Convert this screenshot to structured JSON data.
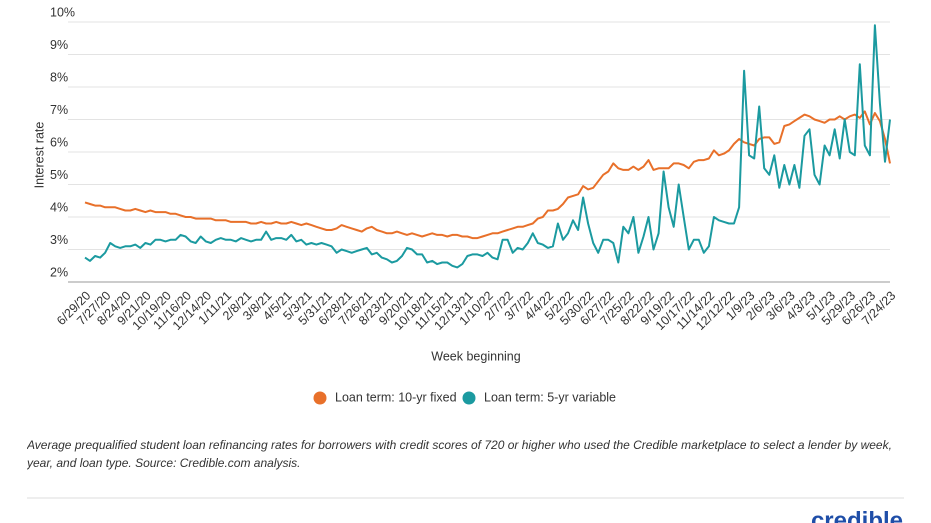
{
  "chart_data": {
    "type": "line",
    "y_label": "Interest rate",
    "x_label": "Week beginning",
    "caption": "Average prequalified student loan refinancing rates for borrowers with credit scores of 720 or higher who used the Credible marketplace to select a lender by week, year, and loan type. Source: Credible.com analysis.",
    "brand": "credible",
    "ylim": [
      2,
      10
    ],
    "yticks": [
      {
        "value": 2,
        "label": "2%"
      },
      {
        "value": 3,
        "label": "3%"
      },
      {
        "value": 4,
        "label": "4%"
      },
      {
        "value": 5,
        "label": "5%"
      },
      {
        "value": 6,
        "label": "6%"
      },
      {
        "value": 7,
        "label": "7%"
      },
      {
        "value": 8,
        "label": "8%"
      },
      {
        "value": 9,
        "label": "9%"
      },
      {
        "value": 10,
        "label": "10%"
      }
    ],
    "grid": true,
    "categories": [
      "6/29/20",
      null,
      null,
      null,
      "7/27/20",
      null,
      null,
      null,
      "8/24/20",
      null,
      null,
      null,
      "9/21/20",
      null,
      null,
      null,
      "10/19/20",
      null,
      null,
      null,
      "11/16/20",
      null,
      null,
      null,
      "12/14/20",
      null,
      null,
      null,
      "1/11/21",
      null,
      null,
      null,
      "2/8/21",
      null,
      null,
      null,
      "3/8/21",
      null,
      null,
      null,
      "4/5/21",
      null,
      null,
      null,
      "5/3/21",
      null,
      null,
      null,
      "5/31/21",
      null,
      null,
      null,
      "6/28/21",
      null,
      null,
      null,
      "7/26/21",
      null,
      null,
      null,
      "8/23/21",
      null,
      null,
      null,
      "9/20/21",
      null,
      null,
      null,
      "10/18/21",
      null,
      null,
      null,
      "11/15/21",
      null,
      null,
      null,
      "12/13/21",
      null,
      null,
      null,
      "1/10/22",
      null,
      null,
      null,
      "2/7/22",
      null,
      null,
      null,
      "3/7/22",
      null,
      null,
      null,
      "4/4/22",
      null,
      null,
      null,
      "5/2/22",
      null,
      null,
      null,
      "5/30/22",
      null,
      null,
      null,
      "6/27/22",
      null,
      null,
      null,
      "7/25/22",
      null,
      null,
      null,
      "8/22/22",
      null,
      null,
      null,
      "9/19/22",
      null,
      null,
      null,
      "10/17/22",
      null,
      null,
      null,
      "11/14/22",
      null,
      null,
      null,
      "12/12/22",
      null,
      null,
      null,
      "1/9/23",
      null,
      null,
      null,
      "2/6/23",
      null,
      null,
      null,
      "3/6/23",
      null,
      null,
      null,
      "4/3/23",
      null,
      null,
      null,
      "5/1/23",
      null,
      null,
      null,
      "5/29/23",
      null,
      null,
      null,
      "6/26/23",
      null,
      null,
      null,
      "7/24/23"
    ],
    "series": [
      {
        "name": "Loan term: 10-yr fixed",
        "color": "#e8702a",
        "values": [
          4.45,
          4.4,
          4.35,
          4.35,
          4.3,
          4.3,
          4.3,
          4.25,
          4.2,
          4.2,
          4.25,
          4.2,
          4.15,
          4.2,
          4.15,
          4.15,
          4.15,
          4.1,
          4.1,
          4.05,
          4.0,
          4.0,
          3.95,
          3.95,
          3.95,
          3.95,
          3.9,
          3.9,
          3.9,
          3.85,
          3.85,
          3.85,
          3.85,
          3.8,
          3.8,
          3.85,
          3.8,
          3.8,
          3.85,
          3.8,
          3.8,
          3.85,
          3.8,
          3.75,
          3.8,
          3.75,
          3.7,
          3.65,
          3.6,
          3.6,
          3.65,
          3.75,
          3.7,
          3.65,
          3.6,
          3.55,
          3.65,
          3.7,
          3.6,
          3.55,
          3.5,
          3.5,
          3.55,
          3.5,
          3.45,
          3.5,
          3.45,
          3.4,
          3.45,
          3.5,
          3.45,
          3.45,
          3.4,
          3.45,
          3.45,
          3.4,
          3.4,
          3.35,
          3.35,
          3.4,
          3.45,
          3.5,
          3.5,
          3.55,
          3.6,
          3.65,
          3.7,
          3.7,
          3.75,
          3.8,
          3.95,
          4.0,
          4.2,
          4.2,
          4.25,
          4.4,
          4.6,
          4.65,
          4.7,
          4.95,
          4.85,
          4.9,
          5.1,
          5.3,
          5.4,
          5.65,
          5.5,
          5.45,
          5.45,
          5.55,
          5.45,
          5.55,
          5.75,
          5.45,
          5.5,
          5.5,
          5.5,
          5.65,
          5.65,
          5.6,
          5.5,
          5.7,
          5.75,
          5.75,
          5.8,
          6.05,
          5.9,
          5.95,
          6.05,
          6.25,
          6.4,
          6.3,
          6.25,
          6.2,
          6.4,
          6.45,
          6.45,
          6.25,
          6.3,
          6.8,
          6.85,
          6.95,
          7.05,
          7.15,
          7.1,
          7.0,
          6.95,
          6.9,
          7.0,
          7.0,
          7.1,
          7.0,
          7.1,
          7.15,
          7.05,
          7.25,
          6.85,
          7.2,
          6.95,
          6.4,
          5.65
        ]
      },
      {
        "name": "Loan term: 5-yr variable",
        "color": "#1b9aa0",
        "values": [
          2.75,
          2.65,
          2.8,
          2.75,
          2.9,
          3.2,
          3.1,
          3.05,
          3.1,
          3.1,
          3.15,
          3.05,
          3.2,
          3.15,
          3.3,
          3.3,
          3.25,
          3.3,
          3.3,
          3.45,
          3.4,
          3.25,
          3.2,
          3.4,
          3.25,
          3.2,
          3.3,
          3.35,
          3.3,
          3.3,
          3.25,
          3.35,
          3.3,
          3.25,
          3.3,
          3.3,
          3.55,
          3.3,
          3.35,
          3.35,
          3.3,
          3.45,
          3.25,
          3.3,
          3.15,
          3.2,
          3.15,
          3.2,
          3.15,
          3.1,
          2.9,
          3.0,
          2.95,
          2.9,
          2.95,
          3.0,
          3.05,
          2.85,
          2.9,
          2.75,
          2.7,
          2.6,
          2.65,
          2.8,
          3.05,
          3.0,
          2.85,
          2.85,
          2.6,
          2.65,
          2.55,
          2.6,
          2.6,
          2.5,
          2.45,
          2.55,
          2.8,
          2.85,
          2.85,
          2.8,
          2.9,
          2.75,
          2.7,
          3.3,
          3.3,
          2.9,
          3.05,
          3.0,
          3.2,
          3.5,
          3.2,
          3.15,
          3.05,
          3.1,
          3.8,
          3.3,
          3.5,
          3.9,
          3.6,
          4.6,
          3.8,
          3.2,
          2.9,
          3.3,
          3.3,
          3.2,
          2.6,
          3.7,
          3.5,
          4.0,
          2.9,
          3.4,
          4.0,
          3.0,
          3.5,
          5.4,
          4.3,
          3.7,
          5.0,
          4.0,
          3.0,
          3.3,
          3.3,
          2.9,
          3.1,
          4.0,
          3.9,
          3.85,
          3.8,
          3.8,
          4.3,
          8.5,
          5.9,
          5.8,
          7.4,
          5.5,
          5.3,
          5.9,
          4.9,
          5.6,
          5.0,
          5.6,
          4.9,
          6.5,
          6.7,
          5.3,
          5.0,
          6.2,
          5.9,
          6.7,
          5.8,
          7.0,
          6.0,
          5.9,
          8.7,
          6.2,
          5.9,
          9.9,
          7.5,
          5.7,
          7.0
        ]
      }
    ]
  }
}
